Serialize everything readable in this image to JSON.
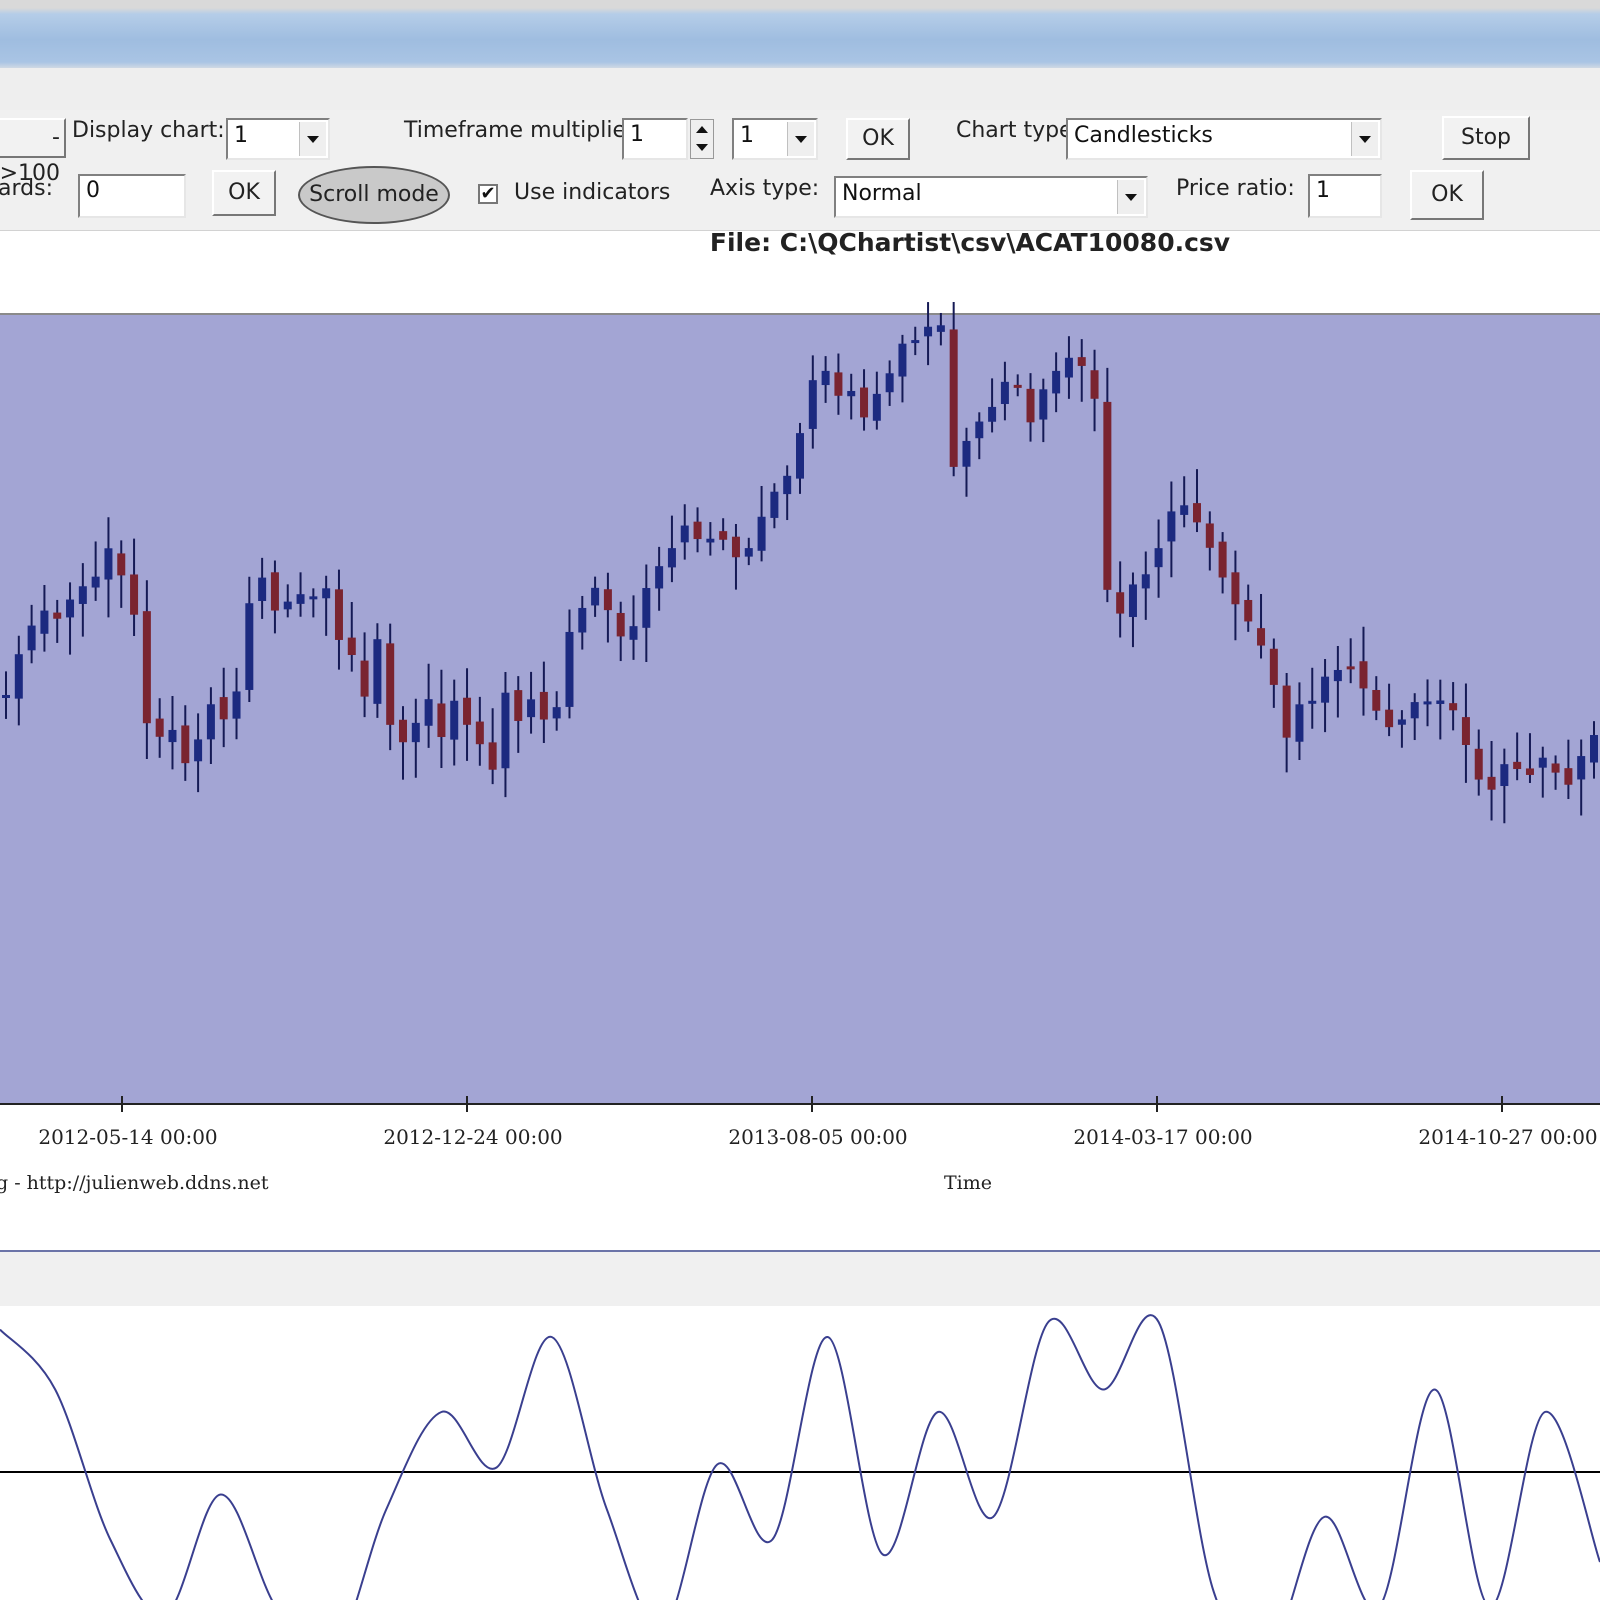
{
  "toolbar": {
    "row1": {
      "prev_button_label": "->100",
      "display_chart_label": "Display chart:",
      "display_chart_value": "1",
      "timeframe_label": "Timeframe multiplier:",
      "timeframe_value": "1",
      "timeframe_unit_value": "1",
      "ok_label": "OK",
      "chart_type_label": "Chart type:",
      "chart_type_value": "Candlesticks",
      "stop_label": "Stop"
    },
    "row2": {
      "shift_label": "ards:",
      "shift_value": "0",
      "ok_label": "OK",
      "scroll_mode_label": "Scroll mode",
      "use_indicators_label": "Use indicators",
      "use_indicators_checked": true,
      "axis_type_label": "Axis type:",
      "axis_type_value": "Normal",
      "price_ratio_label": "Price ratio:",
      "price_ratio_value": "1",
      "ok2_label": "OK"
    }
  },
  "main_chart": {
    "file_title": "File: C:\\QChartist\\csv\\ACAT10080.csv",
    "x_ticks": [
      "2012-05-14 00:00",
      "2012-12-24 00:00",
      "2013-08-05 00:00",
      "2014-03-17 00:00",
      "2014-10-27 00:00"
    ],
    "credit": "g - http://julienweb.ddns.net",
    "xlabel": "Time",
    "plot_bg": "#a3a5d4",
    "bull_color": "#1c2a80",
    "bear_color": "#7a2430"
  },
  "chart_data": [
    {
      "type": "candlestick",
      "title": "File: C:\\QChartist\\csv\\ACAT10080.csv",
      "xlabel": "Time",
      "ylabel": "",
      "x_tick_labels": [
        "2012-05-14 00:00",
        "2012-12-24 00:00",
        "2013-08-05 00:00",
        "2014-03-17 00:00",
        "2014-10-27 00:00"
      ],
      "close_path": [
        700,
        650,
        630,
        610,
        620,
        600,
        585,
        580,
        550,
        575,
        610,
        720,
        740,
        725,
        760,
        740,
        700,
        720,
        690,
        605,
        575,
        610,
        600,
        595,
        600,
        590,
        640,
        660,
        700,
        640,
        720,
        740,
        725,
        700,
        740,
        700,
        720,
        740,
        770,
        690,
        720,
        695,
        720,
        710,
        630,
        605,
        590,
        610,
        640,
        630,
        590,
        570,
        545,
        525,
        540,
        535,
        540,
        560,
        550,
        520,
        495,
        480,
        430,
        385,
        375,
        400,
        390,
        420,
        395,
        375,
        345,
        340,
        330,
        330,
        470,
        440,
        425,
        405,
        385,
        390,
        420,
        390,
        375,
        360,
        370,
        400,
        590,
        615,
        585,
        570,
        545,
        515,
        505,
        520,
        545,
        575,
        600,
        625,
        650,
        685,
        740,
        700,
        705,
        680,
        670,
        665,
        690,
        710,
        725,
        715,
        705,
        700,
        705,
        715,
        745,
        780,
        790,
        760,
        770,
        770,
        760,
        770,
        780,
        760,
        740
      ]
    },
    {
      "type": "line",
      "title": "",
      "xlabel": "",
      "ylabel": "",
      "values": [
        0.95,
        0.55,
        -0.45,
        -0.95,
        -0.15,
        -0.9,
        -1.25,
        -0.25,
        0.4,
        0.03,
        0.9,
        -0.25,
        -1.05,
        0.05,
        -0.45,
        0.9,
        -0.55,
        0.4,
        -0.3,
        1.0,
        0.55,
        1.0,
        -0.8,
        -1.2,
        -0.3,
        -0.9,
        0.55,
        -0.9,
        0.4,
        -0.6
      ],
      "zero_line": true
    }
  ]
}
